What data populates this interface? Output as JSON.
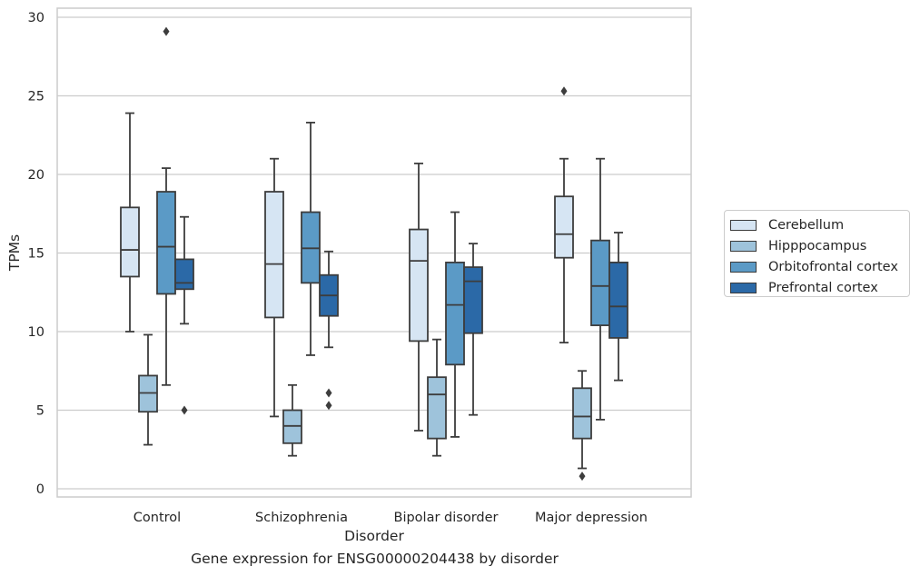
{
  "caption": "Gene expression for ENSG00000204438 by disorder",
  "chart_data": {
    "type": "box",
    "xlabel": "Disorder",
    "ylabel": "TPMs",
    "ylim": [
      -0.5,
      30.5
    ],
    "yticks": [
      0,
      5,
      10,
      15,
      20,
      25,
      30
    ],
    "grid": "horizontal",
    "legend_position": "right",
    "categories": [
      "Control",
      "Schizophrenia",
      "Bipolar disorder",
      "Major depression"
    ],
    "series": [
      {
        "name": "Cerebellum",
        "color": "#d6e5f3",
        "boxes": [
          {
            "whislo": 10.0,
            "q1": 13.5,
            "med": 15.2,
            "q3": 17.9,
            "whishi": 23.9,
            "fliers": []
          },
          {
            "whislo": 4.6,
            "q1": 10.9,
            "med": 14.3,
            "q3": 18.9,
            "whishi": 21.0,
            "fliers": []
          },
          {
            "whislo": 3.7,
            "q1": 9.4,
            "med": 14.5,
            "q3": 16.5,
            "whishi": 20.7,
            "fliers": []
          },
          {
            "whislo": 9.3,
            "q1": 14.7,
            "med": 16.2,
            "q3": 18.6,
            "whishi": 21.0,
            "fliers": [
              25.3
            ]
          }
        ]
      },
      {
        "name": "Hipppocampus",
        "color": "#9ec3db",
        "boxes": [
          {
            "whislo": 2.8,
            "q1": 4.9,
            "med": 6.1,
            "q3": 7.2,
            "whishi": 9.8,
            "fliers": []
          },
          {
            "whislo": 2.1,
            "q1": 2.9,
            "med": 4.0,
            "q3": 5.0,
            "whishi": 6.6,
            "fliers": []
          },
          {
            "whislo": 2.1,
            "q1": 3.2,
            "med": 6.0,
            "q3": 7.1,
            "whishi": 9.5,
            "fliers": []
          },
          {
            "whislo": 1.3,
            "q1": 3.2,
            "med": 4.6,
            "q3": 6.4,
            "whishi": 7.5,
            "fliers": [
              0.8
            ]
          }
        ]
      },
      {
        "name": "Orbitofrontal cortex",
        "color": "#5b9ac6",
        "boxes": [
          {
            "whislo": 6.6,
            "q1": 12.4,
            "med": 15.4,
            "q3": 18.9,
            "whishi": 20.4,
            "fliers": [
              29.1
            ]
          },
          {
            "whislo": 8.5,
            "q1": 13.1,
            "med": 15.3,
            "q3": 17.6,
            "whishi": 23.3,
            "fliers": []
          },
          {
            "whislo": 3.3,
            "q1": 7.9,
            "med": 11.7,
            "q3": 14.4,
            "whishi": 17.6,
            "fliers": []
          },
          {
            "whislo": 4.4,
            "q1": 10.4,
            "med": 12.9,
            "q3": 15.8,
            "whishi": 21.0,
            "fliers": []
          }
        ]
      },
      {
        "name": "Prefrontal cortex",
        "color": "#2b69a7",
        "boxes": [
          {
            "whislo": 10.5,
            "q1": 12.7,
            "med": 13.1,
            "q3": 14.6,
            "whishi": 17.3,
            "fliers": [
              5.0
            ]
          },
          {
            "whislo": 9.0,
            "q1": 11.0,
            "med": 12.3,
            "q3": 13.6,
            "whishi": 15.1,
            "fliers": [
              6.1,
              5.3
            ]
          },
          {
            "whislo": 4.7,
            "q1": 9.9,
            "med": 13.2,
            "q3": 14.1,
            "whishi": 15.6,
            "fliers": []
          },
          {
            "whislo": 6.9,
            "q1": 9.6,
            "med": 11.6,
            "q3": 14.4,
            "whishi": 16.3,
            "fliers": []
          }
        ]
      }
    ]
  }
}
